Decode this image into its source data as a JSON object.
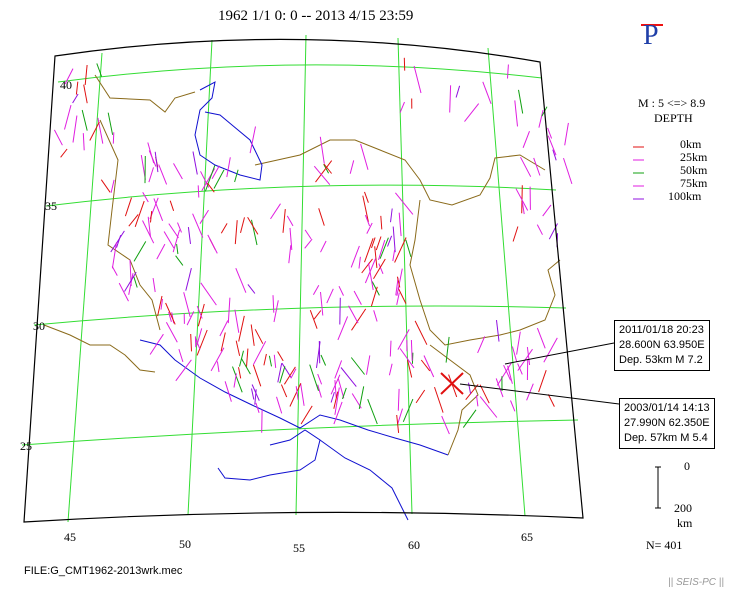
{
  "header": {
    "time_range": "1962 1/1 0: 0 -- 2013 4/15 23:59",
    "projection_mark": "P"
  },
  "legend": {
    "magnitude": "M : 5 <=> 8.9",
    "depth_title": "DEPTH",
    "depths": [
      {
        "label": "0km",
        "color": "#e01010"
      },
      {
        "label": "25km",
        "color": "#e01ee0"
      },
      {
        "label": "50km",
        "color": "#10a010"
      },
      {
        "label": "75km",
        "color": "#e01ee0"
      },
      {
        "label": "100km",
        "color": "#9010e0"
      }
    ],
    "depth_bar_top": "0",
    "depth_bar_bottom": "200",
    "depth_bar_unit": "km",
    "count": "N= 401"
  },
  "callouts": [
    {
      "date": "2011/01/18 20:23",
      "coords": "28.600N  63.950E",
      "detail": "Dep. 53km   M 7.2"
    },
    {
      "date": "2003/01/14 14:13",
      "coords": "27.990N  62.350E",
      "detail": "Dep. 57km   M 5.4"
    }
  ],
  "axes": {
    "lat_labels": [
      "40",
      "35",
      "30",
      "25"
    ],
    "lon_labels": [
      "45",
      "50",
      "55",
      "60",
      "65"
    ]
  },
  "footer": {
    "file": "FILE:G_CMT1962-2013wrk.mec",
    "signature": "|| SEIS-PC ||"
  },
  "colors": {
    "grid": "#33dd33",
    "coast": "#1010d0",
    "border": "#8a6a1a",
    "frame": "#000000",
    "marker": "#e01010"
  }
}
